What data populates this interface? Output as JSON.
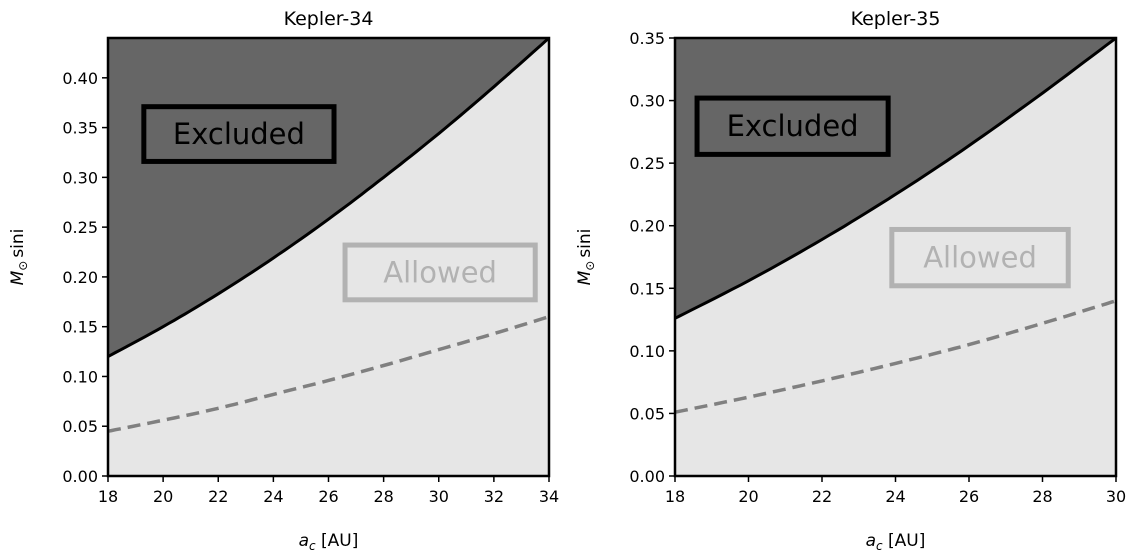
{
  "chart_data": [
    {
      "type": "area",
      "title": "Kepler-34",
      "xlabel": {
        "main": "a",
        "sub": "c",
        "unit": " [AU]"
      },
      "ylabel": {
        "main": "M",
        "sub": "⊙",
        "suffix": "sini"
      },
      "xlim": [
        18,
        34
      ],
      "ylim": [
        0,
        0.44
      ],
      "x_ticks": [
        18,
        20,
        22,
        24,
        26,
        28,
        30,
        32,
        34
      ],
      "y_ticks": [
        0.0,
        0.05,
        0.1,
        0.15,
        0.2,
        0.25,
        0.3,
        0.35,
        0.4
      ],
      "y_tick_labels": [
        "0.00",
        "0.05",
        "0.10",
        "0.15",
        "0.20",
        "0.25",
        "0.30",
        "0.35",
        "0.40"
      ],
      "boundary": {
        "x": [
          18,
          20,
          22,
          24,
          26,
          28,
          30,
          32,
          34
        ],
        "y": [
          0.12,
          0.15,
          0.183,
          0.219,
          0.258,
          0.3,
          0.344,
          0.391,
          0.44
        ]
      },
      "dashed": {
        "x": [
          18,
          20,
          22,
          24,
          26,
          28,
          30,
          32,
          34
        ],
        "y": [
          0.045,
          0.056,
          0.068,
          0.082,
          0.096,
          0.111,
          0.127,
          0.143,
          0.16
        ]
      },
      "annotations": [
        {
          "text": "Excluded",
          "x": 19.3,
          "y": 0.316,
          "x2": 26.2,
          "y2": 0.371,
          "color": "#000000"
        },
        {
          "text": "Allowed",
          "x": 26.6,
          "y": 0.177,
          "x2": 33.5,
          "y2": 0.232,
          "color": "#b2b2b2"
        }
      ],
      "colors": {
        "excluded": "#666666",
        "allowed": "#e6e6e6",
        "boundary": "#000000",
        "dashed": "#808080"
      }
    },
    {
      "type": "area",
      "title": "Kepler-35",
      "xlabel": {
        "main": "a",
        "sub": "c",
        "unit": " [AU]"
      },
      "ylabel": {
        "main": "M",
        "sub": "⊙",
        "suffix": "sini"
      },
      "xlim": [
        18,
        30
      ],
      "ylim": [
        0,
        0.35
      ],
      "x_ticks": [
        18,
        20,
        22,
        24,
        26,
        28,
        30
      ],
      "y_ticks": [
        0.0,
        0.05,
        0.1,
        0.15,
        0.2,
        0.25,
        0.3,
        0.35
      ],
      "y_tick_labels": [
        "0.00",
        "0.05",
        "0.10",
        "0.15",
        "0.20",
        "0.25",
        "0.30",
        "0.35"
      ],
      "boundary": {
        "x": [
          18,
          20,
          22,
          24,
          26,
          28,
          30
        ],
        "y": [
          0.126,
          0.156,
          0.189,
          0.225,
          0.264,
          0.306,
          0.35
        ]
      },
      "dashed": {
        "x": [
          18,
          20,
          22,
          24,
          26,
          28,
          30
        ],
        "y": [
          0.051,
          0.063,
          0.076,
          0.09,
          0.105,
          0.122,
          0.14
        ]
      },
      "annotations": [
        {
          "text": "Excluded",
          "x": 18.6,
          "y": 0.257,
          "x2": 23.8,
          "y2": 0.302,
          "color": "#000000"
        },
        {
          "text": "Allowed",
          "x": 23.9,
          "y": 0.152,
          "x2": 28.7,
          "y2": 0.197,
          "color": "#b2b2b2"
        }
      ],
      "colors": {
        "excluded": "#666666",
        "allowed": "#e6e6e6",
        "boundary": "#000000",
        "dashed": "#808080"
      }
    }
  ]
}
